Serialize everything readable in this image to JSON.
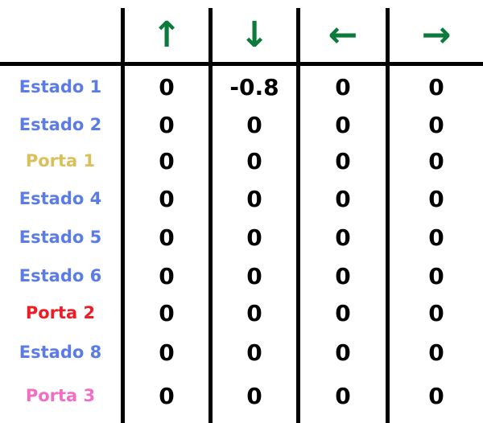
{
  "header": {
    "columns": [
      {
        "label": "↑",
        "icon": "arrow-up-icon",
        "color": "#0b7a3b"
      },
      {
        "label": "↓",
        "icon": "arrow-down-icon",
        "color": "#0b7a3b"
      },
      {
        "label": "←",
        "icon": "arrow-left-icon",
        "color": "#0b7a3b"
      },
      {
        "label": "→",
        "icon": "arrow-right-icon",
        "color": "#0b7a3b"
      }
    ]
  },
  "rows": [
    {
      "label": "Estado 1",
      "color": "#5b7be6",
      "values": [
        "0",
        "-0.8",
        "0",
        "0"
      ]
    },
    {
      "label": "Estado 2",
      "color": "#5b7be6",
      "values": [
        "0",
        "0",
        "0",
        "0"
      ]
    },
    {
      "label": "Porta 1",
      "color": "#d9c05a",
      "values": [
        "0",
        "0",
        "0",
        "0"
      ]
    },
    {
      "label": "Estado 4",
      "color": "#5b7be6",
      "values": [
        "0",
        "0",
        "0",
        "0"
      ]
    },
    {
      "label": "Estado 5",
      "color": "#5b7be6",
      "values": [
        "0",
        "0",
        "0",
        "0"
      ]
    },
    {
      "label": "Estado 6",
      "color": "#5b7be6",
      "values": [
        "0",
        "0",
        "0",
        "0"
      ]
    },
    {
      "label": "Porta 2",
      "color": "#ee1c24",
      "values": [
        "0",
        "0",
        "0",
        "0"
      ]
    },
    {
      "label": "Estado 8",
      "color": "#5b7be6",
      "values": [
        "0",
        "0",
        "0",
        "0"
      ]
    },
    {
      "label": "Porta 3",
      "color": "#f06ec4",
      "values": [
        "0",
        "0",
        "0",
        "0"
      ]
    }
  ]
}
